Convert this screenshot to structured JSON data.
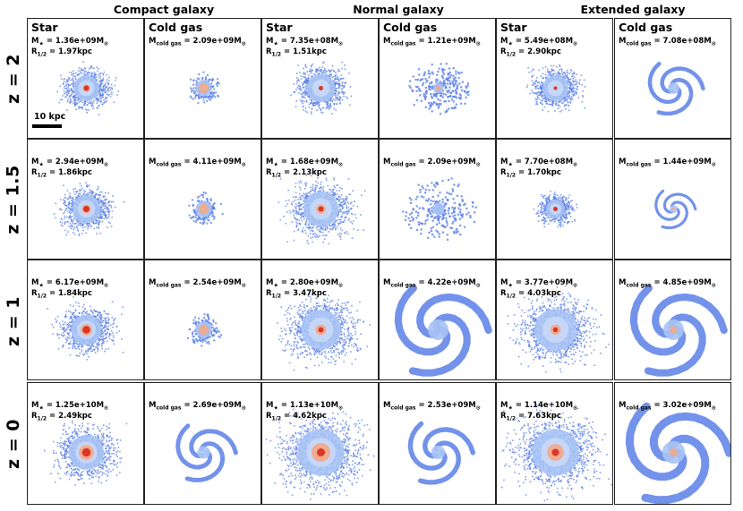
{
  "columns": [
    {
      "header": "Compact galaxy"
    },
    {
      "header": "Normal galaxy"
    },
    {
      "header": "Extended galaxy"
    }
  ],
  "rows": [
    {
      "label": "z = 2",
      "panels": [
        {
          "title": "Star",
          "kind": "star",
          "mass_prefix": "M",
          "mass_value": "= 1.36e+09M",
          "radius_value": "= 1.97kpc",
          "size": 0.55,
          "core": 0.6,
          "gas_style": "none"
        },
        {
          "title": "Cold gas",
          "kind": "gas",
          "mass_prefix": "M",
          "mass_value": "= 2.09e+09M",
          "size": 0.45,
          "core": 0.5,
          "gas_style": "compact"
        },
        {
          "title": "Star",
          "kind": "star",
          "mass_prefix": "M",
          "mass_value": "= 7.35e+08M",
          "radius_value": "= 1.51kpc",
          "size": 0.6,
          "core": 0.5
        },
        {
          "title": "Cold gas",
          "kind": "gas",
          "mass_prefix": "M",
          "mass_value": "= 1.21e+09M",
          "size": 0.5,
          "core": 0.4,
          "gas_style": "filament"
        },
        {
          "title": "Star",
          "kind": "star",
          "mass_prefix": "M",
          "mass_value": "= 5.49e+08M",
          "radius_value": "= 2.90kpc",
          "size": 0.55,
          "core": 0.35
        },
        {
          "title": "Cold gas",
          "kind": "gas",
          "mass_prefix": "M",
          "mass_value": "= 7.08e+08M",
          "size": 0.5,
          "core": 0.0,
          "gas_style": "spiral"
        }
      ]
    },
    {
      "label": "z = 1.5",
      "panels": [
        {
          "title": "",
          "kind": "star",
          "mass_prefix": "M",
          "mass_value": "= 2.94e+09M",
          "radius_value": "= 1.86kpc",
          "size": 0.6,
          "core": 0.7
        },
        {
          "title": "",
          "kind": "gas",
          "mass_prefix": "M",
          "mass_value": "= 4.11e+09M",
          "size": 0.45,
          "core": 0.6,
          "gas_style": "compact"
        },
        {
          "title": "",
          "kind": "star",
          "mass_prefix": "M",
          "mass_value": "= 1.68e+09M",
          "radius_value": "= 2.13kpc",
          "size": 0.75,
          "core": 0.6
        },
        {
          "title": "",
          "kind": "gas",
          "mass_prefix": "M",
          "mass_value": "= 2.09e+09M",
          "size": 0.6,
          "core": 0.2,
          "gas_style": "filament"
        },
        {
          "title": "",
          "kind": "star",
          "mass_prefix": "M",
          "mass_value": "= 7.70e+08M",
          "radius_value": "= 1.70kpc",
          "size": 0.4,
          "core": 0.5
        },
        {
          "title": "",
          "kind": "gas",
          "mass_prefix": "M",
          "mass_value": "= 1.44e+09M",
          "size": 0.35,
          "core": 0.2,
          "gas_style": "spiral"
        }
      ]
    },
    {
      "label": "z = 1",
      "panels": [
        {
          "title": "",
          "kind": "star",
          "mass_prefix": "M",
          "mass_value": "= 6.17e+09M",
          "radius_value": "= 1.84kpc",
          "size": 0.65,
          "core": 0.85
        },
        {
          "title": "",
          "kind": "gas",
          "mass_prefix": "M",
          "mass_value": "= 2.54e+09M",
          "size": 0.45,
          "core": 0.5,
          "gas_style": "compact"
        },
        {
          "title": "",
          "kind": "star",
          "mass_prefix": "M",
          "mass_value": "= 2.80e+09M",
          "radius_value": "= 3.47kpc",
          "size": 0.85,
          "core": 0.6
        },
        {
          "title": "",
          "kind": "gas",
          "mass_prefix": "M",
          "mass_value": "= 4.22e+09M",
          "size": 0.9,
          "core": 0.1,
          "gas_style": "spiral"
        },
        {
          "title": "",
          "kind": "star",
          "mass_prefix": "M",
          "mass_value": "= 3.77e+09M",
          "radius_value": "= 4.03kpc",
          "size": 0.9,
          "core": 0.55
        },
        {
          "title": "",
          "kind": "gas",
          "mass_prefix": "M",
          "mass_value": "= 4.85e+09M",
          "size": 0.9,
          "core": 0.3,
          "gas_style": "spiral"
        }
      ]
    },
    {
      "label": "z = 0",
      "panels": [
        {
          "title": "",
          "kind": "star",
          "mass_prefix": "M",
          "mass_value": "= 1.25e+10M",
          "radius_value": "= 2.49kpc",
          "size": 0.75,
          "core": 0.95
        },
        {
          "title": "",
          "kind": "gas",
          "mass_prefix": "M",
          "mass_value": "= 2.69e+09M",
          "size": 0.55,
          "core": 0.1,
          "gas_style": "spiral"
        },
        {
          "title": "",
          "kind": "star",
          "mass_prefix": "M",
          "mass_value": "= 1.13e+10M",
          "radius_value": "= 4.62kpc",
          "size": 1.0,
          "core": 0.9
        },
        {
          "title": "",
          "kind": "gas",
          "mass_prefix": "M",
          "mass_value": "= 2.53e+09M",
          "size": 0.6,
          "core": 0.1,
          "gas_style": "spiral"
        },
        {
          "title": "",
          "kind": "star",
          "mass_prefix": "M",
          "mass_value": "= 1.14e+10M",
          "radius_value": "= 7.63kpc",
          "size": 1.0,
          "core": 0.8
        },
        {
          "title": "",
          "kind": "gas",
          "mass_prefix": "M",
          "mass_value": "= 3.02e+09M",
          "size": 1.0,
          "core": 0.2,
          "gas_style": "spiral"
        }
      ]
    }
  ],
  "symbols": {
    "star_sub": "★",
    "cold_sub": "cold gas",
    "radius_prefix": "R",
    "radius_sub": "1/2",
    "sun_sub": "⊙"
  },
  "scale_bar_label": "10 kpc",
  "colors": {
    "outer": "#5b7fe6",
    "mid": "#a9c4f5",
    "warm": "#f3a98a",
    "core": "#d7301f",
    "frame": "#222222"
  }
}
